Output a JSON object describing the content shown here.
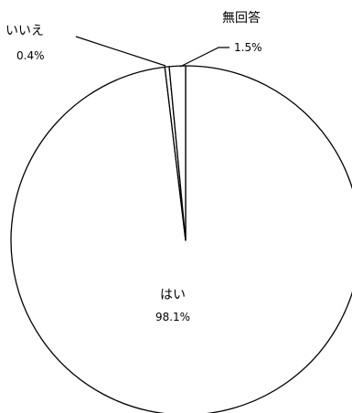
{
  "chart_data": {
    "type": "pie",
    "title": "",
    "start_angle_deg": 0,
    "direction": "clockwise",
    "slices": [
      {
        "label": "はい",
        "value_text": "98.1%",
        "value": 98.1,
        "color": "#ffffff"
      },
      {
        "label": "いいえ",
        "value_text": "0.4%",
        "value": 0.4,
        "color": "#ffffff"
      },
      {
        "label": "無回答",
        "value_text": "1.5%",
        "value": 1.5,
        "color": "#ffffff"
      }
    ],
    "stroke_color": "#000000",
    "legend": "none"
  }
}
